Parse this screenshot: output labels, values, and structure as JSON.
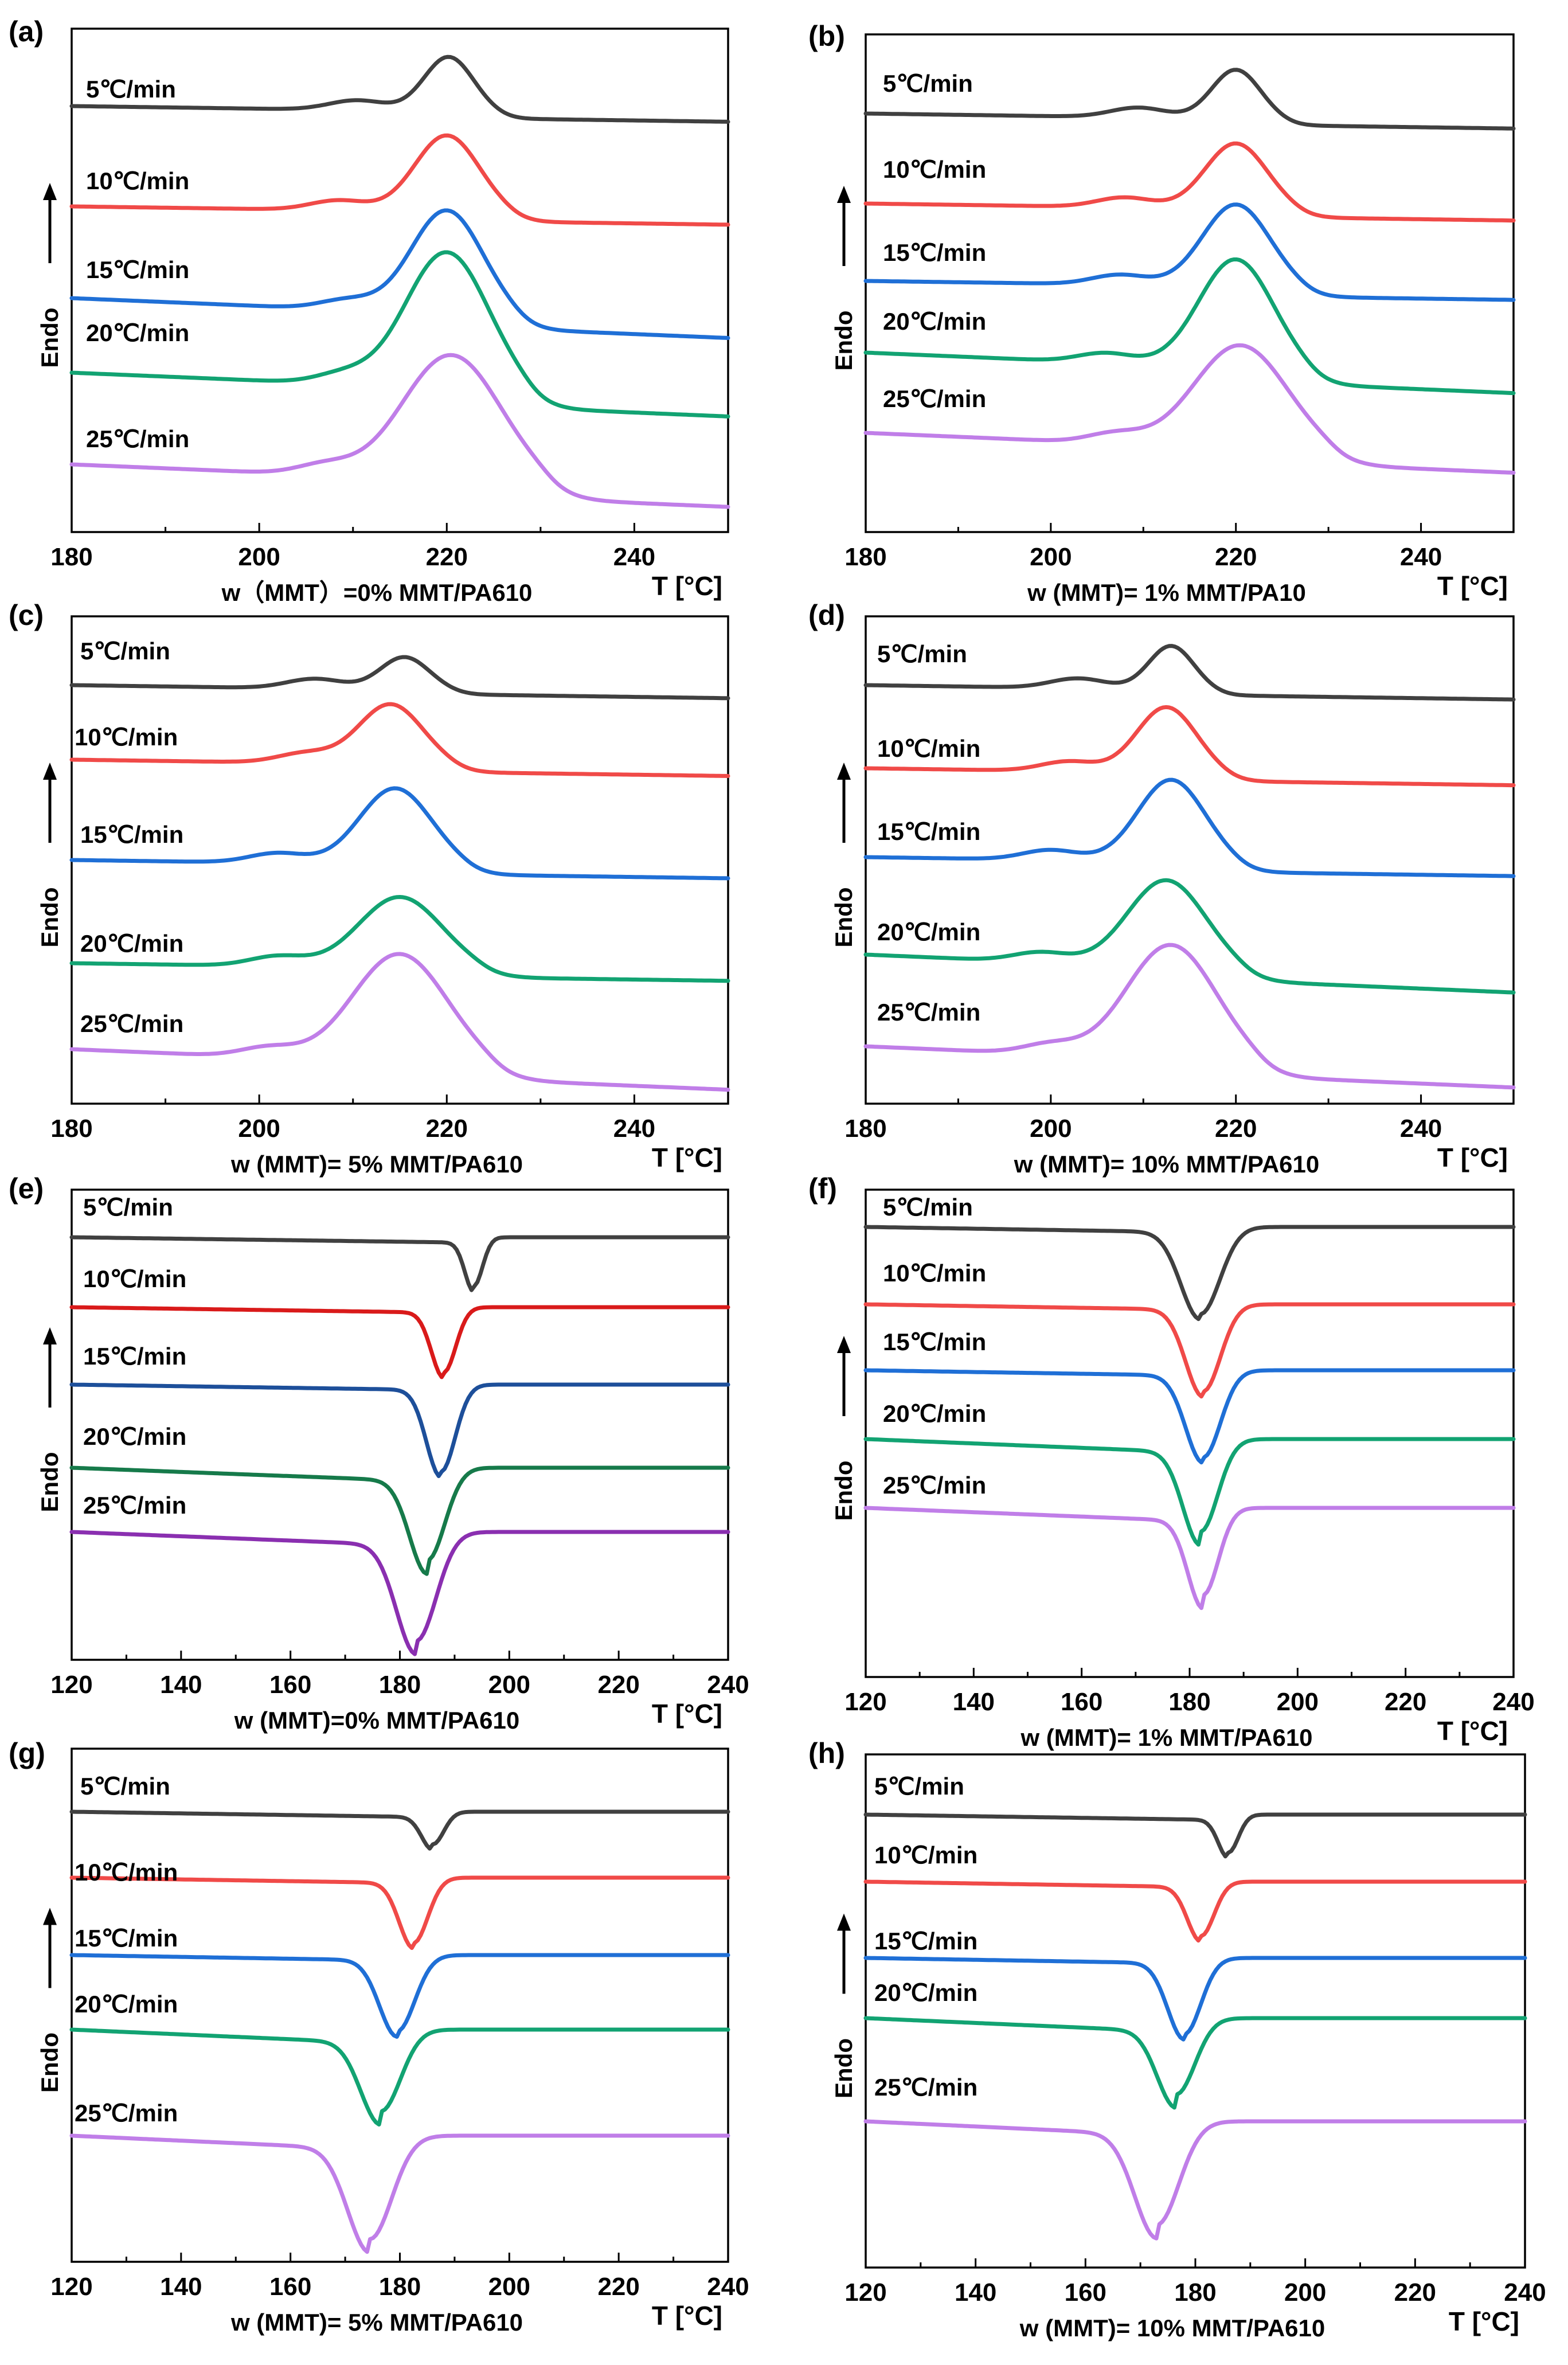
{
  "figure": {
    "endo_label": "Endo",
    "colors": {
      "5": "#404040",
      "10": "#f04a48",
      "15": "#1f6fd6",
      "20": "#12a372",
      "25": "#c07ee8",
      "e_10": "#d91a1a",
      "e_15": "#1d4f9a",
      "e_20": "#167a4a",
      "e_25": "#8a2fb0"
    }
  },
  "chart_data": [
    {
      "panel": "(a)",
      "type": "line",
      "mode": "melting",
      "xlabel": "w（MMT）=0% MMT/PA610",
      "t_label": "T [°C]",
      "xlim": [
        180,
        250
      ],
      "xticks": [
        180,
        200,
        220,
        240
      ],
      "series": [
        {
          "name": "5℃/min",
          "peak": 220.2,
          "height": 1.0,
          "width": 2.6,
          "shoulder": 210.5
        },
        {
          "name": "10℃/min",
          "peak": 220.0,
          "height": 1.4,
          "width": 3.4,
          "shoulder": 208.5
        },
        {
          "name": "15℃/min",
          "peak": 220.0,
          "height": 1.9,
          "width": 3.8,
          "shoulder": 209.5
        },
        {
          "name": "20℃/min",
          "peak": 220.0,
          "height": 2.5,
          "width": 4.4,
          "shoulder": 209.0
        },
        {
          "name": "25℃/min",
          "peak": 220.5,
          "height": 2.3,
          "width": 5.2,
          "shoulder": 207.0
        }
      ]
    },
    {
      "panel": "(b)",
      "type": "line",
      "mode": "melting",
      "xlabel": "w (MMT)= 1% MMT/PA10",
      "t_label": "T [°C]",
      "xlim": [
        180,
        250
      ],
      "xticks": [
        180,
        200,
        220,
        240
      ],
      "series": [
        {
          "name": "5℃/min",
          "peak": 220.0,
          "height": 0.9,
          "width": 2.6,
          "shoulder": 209.5
        },
        {
          "name": "10℃/min",
          "peak": 220.0,
          "height": 1.2,
          "width": 3.3,
          "shoulder": 208.0
        },
        {
          "name": "15℃/min",
          "peak": 220.0,
          "height": 1.5,
          "width": 3.6,
          "shoulder": 207.5
        },
        {
          "name": "20℃/min",
          "peak": 220.0,
          "height": 2.0,
          "width": 4.0,
          "shoulder": 206.0
        },
        {
          "name": "25℃/min",
          "peak": 220.5,
          "height": 1.9,
          "width": 5.0,
          "shoulder": 207.0
        }
      ]
    },
    {
      "panel": "(c)",
      "type": "line",
      "mode": "melting",
      "xlabel": "w (MMT)= 5% MMT/PA610",
      "t_label": "T [°C]",
      "xlim": [
        180,
        250
      ],
      "xticks": [
        180,
        200,
        220,
        240
      ],
      "series": [
        {
          "name": "5℃/min",
          "peak": 215.5,
          "height": 0.6,
          "width": 2.6,
          "shoulder": 206.0
        },
        {
          "name": "10℃/min",
          "peak": 214.0,
          "height": 1.1,
          "width": 3.4,
          "shoulder": 205.0
        },
        {
          "name": "15℃/min",
          "peak": 214.5,
          "height": 1.4,
          "width": 3.8,
          "shoulder": 202.0
        },
        {
          "name": "20℃/min",
          "peak": 215.0,
          "height": 1.3,
          "width": 4.4,
          "shoulder": 202.0
        },
        {
          "name": "25℃/min",
          "peak": 215.0,
          "height": 2.0,
          "width": 5.0,
          "shoulder": 201.0
        }
      ]
    },
    {
      "panel": "(d)",
      "type": "line",
      "mode": "melting",
      "xlabel": "w (MMT)= 10% MMT/PA610",
      "t_label": "T [°C]",
      "xlim": [
        180,
        250
      ],
      "xticks": [
        180,
        200,
        220,
        240
      ],
      "series": [
        {
          "name": "5℃/min",
          "peak": 213.0,
          "height": 0.8,
          "width": 2.4,
          "shoulder": 203.0
        },
        {
          "name": "10℃/min",
          "peak": 212.5,
          "height": 1.2,
          "width": 3.2,
          "shoulder": 202.0
        },
        {
          "name": "15℃/min",
          "peak": 213.0,
          "height": 1.5,
          "width": 3.6,
          "shoulder": 200.0
        },
        {
          "name": "20℃/min",
          "peak": 212.5,
          "height": 1.6,
          "width": 4.2,
          "shoulder": 199.0
        },
        {
          "name": "25℃/min",
          "peak": 213.0,
          "height": 2.1,
          "width": 4.8,
          "shoulder": 200.0
        }
      ]
    },
    {
      "panel": "(e)",
      "type": "line",
      "mode": "cooling",
      "xlabel": "w (MMT)=0% MMT/PA610",
      "t_label": "T [°C]",
      "xlim": [
        120,
        240
      ],
      "xticks": [
        120,
        140,
        160,
        180,
        200,
        220,
        240
      ],
      "series": [
        {
          "name": "5℃/min",
          "peak": 193.5,
          "height": 0.9,
          "width": 1.6
        },
        {
          "name": "10℃/min",
          "peak": 188.0,
          "height": 1.2,
          "width": 2.2
        },
        {
          "name": "15℃/min",
          "peak": 187.5,
          "height": 1.6,
          "width": 2.6
        },
        {
          "name": "20℃/min",
          "peak": 185.0,
          "height": 1.7,
          "width": 3.2
        },
        {
          "name": "25℃/min",
          "peak": 183.0,
          "height": 2.0,
          "width": 3.6
        }
      ]
    },
    {
      "panel": "(f)",
      "type": "line",
      "mode": "cooling",
      "xlabel": "w (MMT)= 1% MMT/PA610",
      "t_label": "T [°C]",
      "xlim": [
        120,
        240
      ],
      "xticks": [
        120,
        140,
        160,
        180,
        200,
        220,
        240
      ],
      "series": [
        {
          "name": "5℃/min",
          "peak": 182.0,
          "height": 1.6,
          "width": 3.6
        },
        {
          "name": "10℃/min",
          "peak": 182.5,
          "height": 1.6,
          "width": 3.2
        },
        {
          "name": "15℃/min",
          "peak": 182.5,
          "height": 1.6,
          "width": 3.2
        },
        {
          "name": "20℃/min",
          "peak": 182.0,
          "height": 1.7,
          "width": 3.2
        },
        {
          "name": "25℃/min",
          "peak": 182.5,
          "height": 1.6,
          "width": 2.8
        }
      ]
    },
    {
      "panel": "(g)",
      "type": "line",
      "mode": "cooling",
      "xlabel": "w (MMT)= 5% MMT/PA610",
      "t_label": "T [°C]",
      "xlim": [
        120,
        240
      ],
      "xticks": [
        120,
        140,
        160,
        180,
        200,
        220,
        240
      ],
      "series": [
        {
          "name": "5℃/min",
          "peak": 186.0,
          "height": 0.6,
          "width": 2.0
        },
        {
          "name": "10℃/min",
          "peak": 182.5,
          "height": 1.2,
          "width": 2.6
        },
        {
          "name": "15℃/min",
          "peak": 179.5,
          "height": 1.4,
          "width": 3.2
        },
        {
          "name": "20℃/min",
          "peak": 176.5,
          "height": 1.5,
          "width": 3.6
        },
        {
          "name": "25℃/min",
          "peak": 174.5,
          "height": 1.9,
          "width": 4.0
        }
      ]
    },
    {
      "panel": "(h)",
      "type": "line",
      "mode": "cooling",
      "xlabel": "w (MMT)= 10% MMT/PA610",
      "t_label": "T [°C]",
      "xlim": [
        120,
        240
      ],
      "xticks": [
        120,
        140,
        160,
        180,
        200,
        220,
        240
      ],
      "series": [
        {
          "name": "5℃/min",
          "peak": 186.0,
          "height": 0.7,
          "width": 1.8
        },
        {
          "name": "10℃/min",
          "peak": 181.0,
          "height": 1.0,
          "width": 2.4
        },
        {
          "name": "15℃/min",
          "peak": 178.0,
          "height": 1.4,
          "width": 3.0
        },
        {
          "name": "20℃/min",
          "peak": 176.5,
          "height": 1.4,
          "width": 3.4
        },
        {
          "name": "25℃/min",
          "peak": 173.0,
          "height": 1.9,
          "width": 4.0
        }
      ]
    }
  ]
}
